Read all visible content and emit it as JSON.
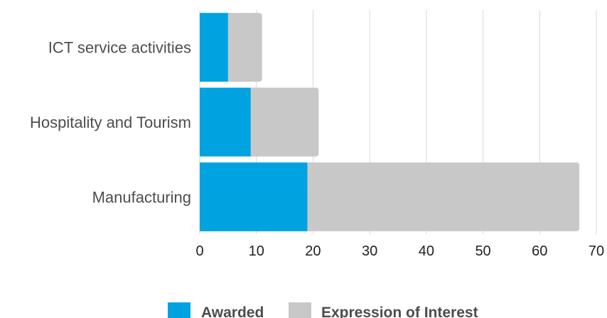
{
  "chart_data": {
    "type": "bar",
    "orientation": "horizontal",
    "stacked": true,
    "categories": [
      "ICT service activities",
      "Hospitality and Tourism",
      "Manufacturing"
    ],
    "series": [
      {
        "name": "Awarded",
        "values": [
          5,
          9,
          19
        ],
        "color": "#00a3df"
      },
      {
        "name": "Expression of Interest",
        "values": [
          6,
          12,
          48
        ],
        "color": "#c8c8c8"
      }
    ],
    "xlim": [
      0,
      70
    ],
    "xticks": [
      "0",
      "10",
      "20",
      "30",
      "40",
      "50",
      "60",
      "70"
    ],
    "grid": "vertical",
    "legend_position": "bottom"
  }
}
